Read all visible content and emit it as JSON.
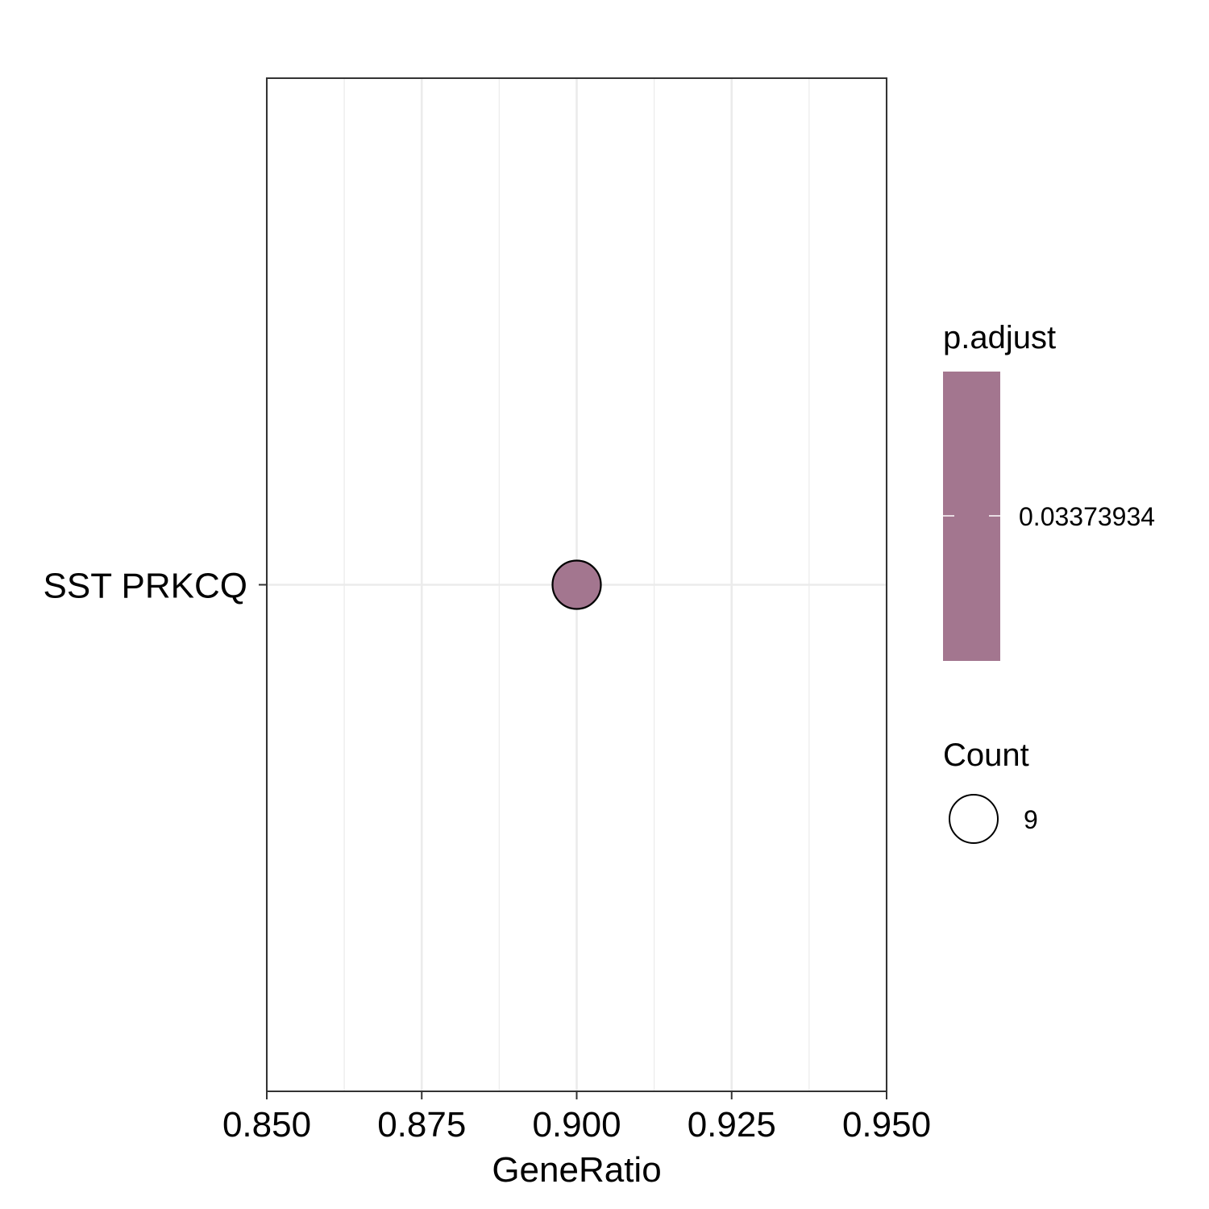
{
  "chart_data": {
    "type": "scatter",
    "xlabel": "GeneRatio",
    "ylabel": "",
    "xlim": [
      0.85,
      0.95
    ],
    "x_ticks": [
      "0.850",
      "0.875",
      "0.900",
      "0.925",
      "0.950"
    ],
    "x_tick_values": [
      0.85,
      0.875,
      0.9,
      0.925,
      0.95
    ],
    "categories": [
      "SST PRKCQ"
    ],
    "points": [
      {
        "category": "SST PRKCQ",
        "x": 0.9,
        "count": 9,
        "p_adjust": 0.03373934,
        "color": "#a3768f"
      }
    ],
    "grid": true,
    "legend_placement": "right",
    "legends": {
      "color": {
        "title": "p.adjust",
        "labels": [
          "0.03373934"
        ],
        "values": [
          0.03373934
        ],
        "color": "#a3768f"
      },
      "size": {
        "title": "Count",
        "labels": [
          "9"
        ],
        "values": [
          9
        ]
      }
    }
  }
}
